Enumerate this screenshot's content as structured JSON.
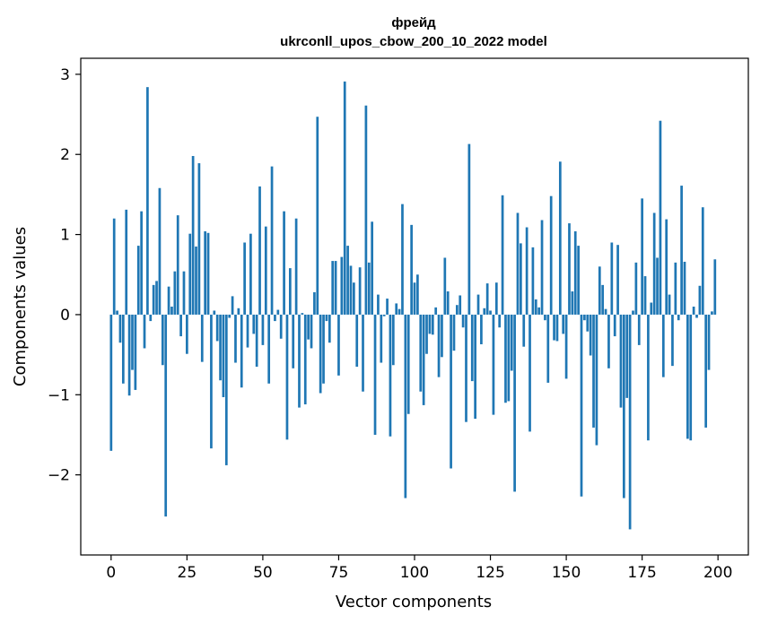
{
  "chart_data": {
    "type": "bar",
    "title_line1": "фрейд",
    "title_line2": "ukrconll_upos_cbow_200_10_2022 model",
    "xlabel": "Vector components",
    "ylabel": "Components values",
    "xlim": [
      -10,
      210
    ],
    "ylim": [
      -3.0,
      3.2
    ],
    "xticks": [
      0,
      25,
      50,
      75,
      100,
      125,
      150,
      175,
      200
    ],
    "xtick_labels": [
      "0",
      "25",
      "50",
      "75",
      "100",
      "125",
      "150",
      "175",
      "200"
    ],
    "yticks": [
      -2,
      -1,
      0,
      1,
      2,
      3
    ],
    "ytick_labels": [
      "−2",
      "−1",
      "0",
      "1",
      "2",
      "3"
    ],
    "grid": false,
    "bar_color": "#1f77b4",
    "values": [
      -1.7,
      1.2,
      0.05,
      -0.35,
      -0.86,
      1.31,
      -1.01,
      -0.69,
      -0.94,
      0.86,
      1.29,
      -0.42,
      2.84,
      -0.08,
      0.37,
      0.42,
      1.58,
      -0.63,
      -2.52,
      0.35,
      0.1,
      0.54,
      1.24,
      -0.27,
      0.54,
      -0.49,
      1.01,
      1.98,
      0.85,
      1.89,
      -0.59,
      1.04,
      1.02,
      -1.67,
      0.05,
      -0.33,
      -0.82,
      -1.03,
      -1.88,
      -0.04,
      0.23,
      -0.6,
      0.08,
      -0.91,
      0.9,
      -0.41,
      1.01,
      -0.24,
      -0.65,
      1.6,
      -0.38,
      1.1,
      -0.86,
      1.85,
      -0.08,
      0.06,
      -0.3,
      1.29,
      -1.56,
      0.58,
      -0.67,
      1.2,
      -1.16,
      0.02,
      -1.12,
      -0.31,
      -0.42,
      0.28,
      2.47,
      -0.98,
      -0.86,
      -0.08,
      -0.35,
      0.67,
      0.67,
      -0.76,
      0.72,
      2.91,
      0.86,
      0.61,
      0.4,
      -0.65,
      0.59,
      -0.96,
      2.61,
      0.65,
      1.16,
      -1.5,
      0.25,
      -0.6,
      -0.02,
      0.2,
      -1.52,
      -0.63,
      0.14,
      0.07,
      1.38,
      -2.29,
      -1.24,
      1.12,
      0.4,
      0.5,
      -0.96,
      -1.13,
      -0.49,
      -0.24,
      -0.25,
      0.09,
      -0.78,
      -0.53,
      0.71,
      0.29,
      -1.92,
      -0.45,
      0.12,
      0.24,
      -0.16,
      -1.34,
      2.13,
      -0.83,
      -1.3,
      0.25,
      -0.37,
      0.08,
      0.39,
      0.05,
      -1.25,
      0.4,
      -0.16,
      1.49,
      -1.1,
      -1.08,
      -0.7,
      -2.21,
      1.27,
      0.89,
      -0.4,
      1.09,
      -1.46,
      0.84,
      0.19,
      0.09,
      1.18,
      -0.07,
      -0.85,
      1.48,
      -0.32,
      -0.33,
      1.91,
      -0.24,
      -0.8,
      1.14,
      0.29,
      1.04,
      0.86,
      -2.27,
      -0.07,
      -0.21,
      -0.51,
      -1.41,
      -1.63,
      0.6,
      0.37,
      0.07,
      -0.67,
      0.9,
      -0.27,
      0.87,
      -1.16,
      -2.29,
      -1.04,
      -2.68,
      0.05,
      0.65,
      -0.38,
      1.45,
      0.48,
      -1.57,
      0.15,
      1.27,
      0.71,
      2.42,
      -0.78,
      1.19,
      0.25,
      -0.64,
      0.65,
      -0.07,
      1.61,
      0.66,
      -1.55,
      -1.57,
      0.1,
      -0.04,
      0.36,
      1.34,
      -1.41,
      -0.69,
      0.04,
      0.69
    ]
  }
}
